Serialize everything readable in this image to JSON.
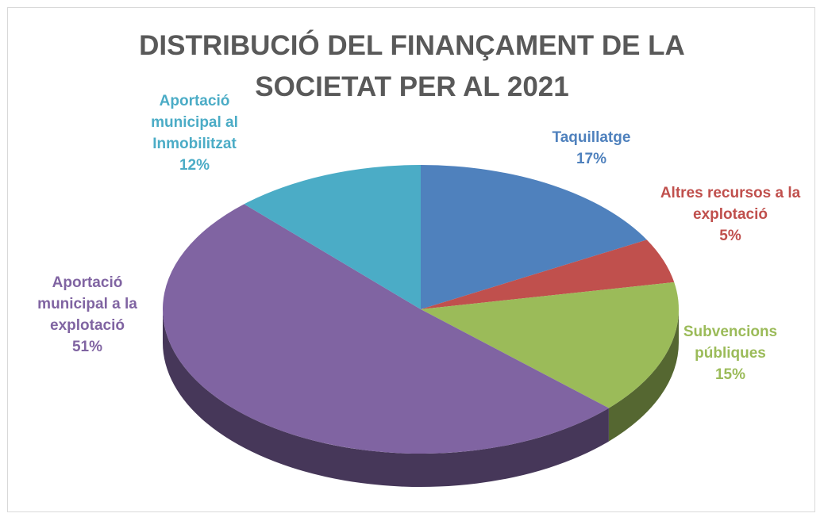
{
  "chart_data": {
    "type": "pie",
    "title": "DISTRIBUCIÓ DEL FINANÇAMENT DE LA SOCIETAT PER AL 2021",
    "categories": [
      "Taquillatge",
      "Altres recursos a la explotació",
      "Subvencions públiques",
      "Aportació municipal a la explotació",
      "Aportació municipal al Inmobilitzat"
    ],
    "values": [
      17,
      5,
      15,
      51,
      12
    ],
    "value_labels": [
      "17%",
      "5%",
      "15%",
      "51%",
      "12%"
    ],
    "colors": [
      "#4f81bd",
      "#c0504d",
      "#9bbb59",
      "#8064a2",
      "#4bacc6"
    ]
  }
}
